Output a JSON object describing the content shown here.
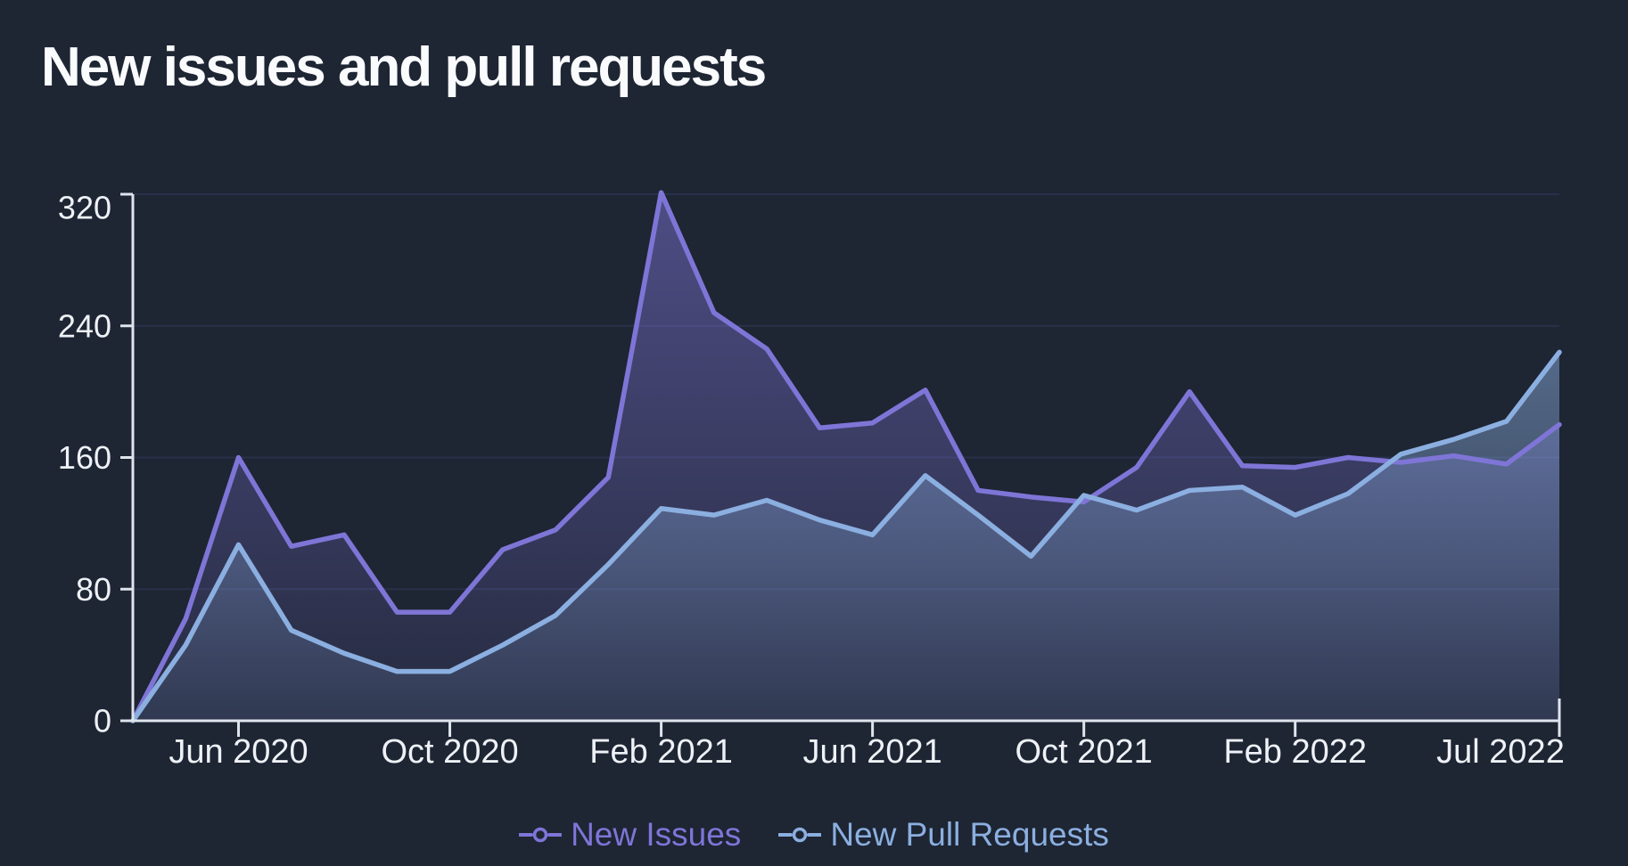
{
  "title": "New issues and pull requests",
  "colors": {
    "background": "#1e2533",
    "title": "#fafbfd",
    "axis": "#dfe4ec",
    "tick_label": "#eef1f6",
    "gridline": "#28314a",
    "issues_line": "#7f75d7",
    "pull_requests_line": "#8bafe0"
  },
  "legend": [
    {
      "label": "New Issues",
      "series": "issues"
    },
    {
      "label": "New Pull Requests",
      "series": "pull_requests"
    }
  ],
  "chart_data": {
    "type": "area",
    "title": "New issues and pull requests",
    "xlabel": "",
    "ylabel": "",
    "ylim": [
      0,
      320
    ],
    "y_ticks": [
      0,
      80,
      160,
      240,
      320
    ],
    "grid": true,
    "legend_position": "bottom",
    "x": [
      "Apr 2020",
      "May 2020",
      "Jun 2020",
      "Jul 2020",
      "Aug 2020",
      "Sep 2020",
      "Oct 2020",
      "Nov 2020",
      "Dec 2020",
      "Jan 2021",
      "Feb 2021",
      "Mar 2021",
      "Apr 2021",
      "May 2021",
      "Jun 2021",
      "Jul 2021",
      "Aug 2021",
      "Sep 2021",
      "Oct 2021",
      "Nov 2021",
      "Dec 2021",
      "Jan 2022",
      "Feb 2022",
      "Mar 2022",
      "Apr 2022",
      "May 2022",
      "Jun 2022",
      "Jul 2022"
    ],
    "x_tick_indices": [
      2,
      6,
      10,
      14,
      18,
      22,
      27
    ],
    "x_tick_labels": [
      "Jun 2020",
      "Oct 2020",
      "Feb 2021",
      "Jun 2021",
      "Oct 2021",
      "Feb 2022",
      "Jul 2022"
    ],
    "series": [
      {
        "name": "New Issues",
        "color": "#7f75d7",
        "values": [
          0,
          62,
          160,
          106,
          113,
          66,
          66,
          104,
          116,
          148,
          321,
          248,
          226,
          178,
          181,
          201,
          140,
          136,
          133,
          154,
          200,
          155,
          154,
          160,
          157,
          161,
          156,
          180
        ]
      },
      {
        "name": "New Pull Requests",
        "color": "#8bafe0",
        "values": [
          0,
          46,
          107,
          55,
          41,
          30,
          30,
          46,
          64,
          95,
          129,
          125,
          134,
          122,
          113,
          149,
          125,
          100,
          137,
          128,
          140,
          142,
          125,
          138,
          162,
          171,
          182,
          224
        ]
      }
    ]
  }
}
